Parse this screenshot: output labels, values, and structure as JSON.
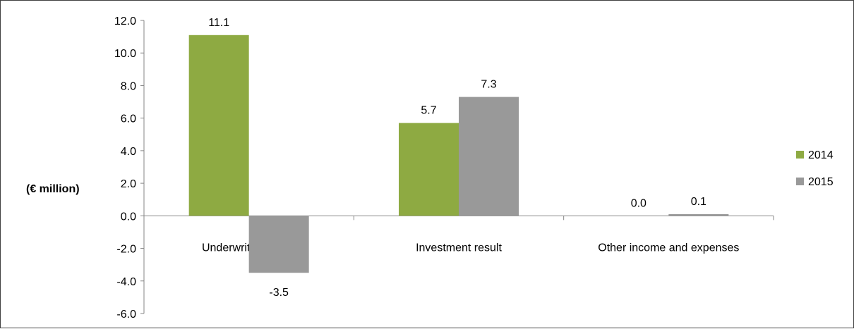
{
  "chart_data": {
    "type": "bar",
    "title": "",
    "xlabel": "",
    "ylabel": "(€ million)",
    "categories": [
      "Underwriting result",
      "Investment result",
      "Other income and expenses"
    ],
    "series": [
      {
        "name": "2014",
        "color": "#8EAA42",
        "values": [
          11.1,
          5.7,
          0.0
        ],
        "labels": [
          "11.1",
          "5.7",
          "0.0"
        ]
      },
      {
        "name": "2015",
        "color": "#999999",
        "values": [
          -3.5,
          7.3,
          0.1
        ],
        "labels": [
          "-3.5",
          "7.3",
          "0.1"
        ]
      }
    ],
    "ylim": [
      -6.0,
      12.0
    ],
    "yticks": [
      "12.0",
      "10.0",
      "8.0",
      "6.0",
      "4.0",
      "2.0",
      "0.0",
      "-2.0",
      "-4.0",
      "-6.0"
    ],
    "grid": false,
    "legend_position": "right"
  }
}
